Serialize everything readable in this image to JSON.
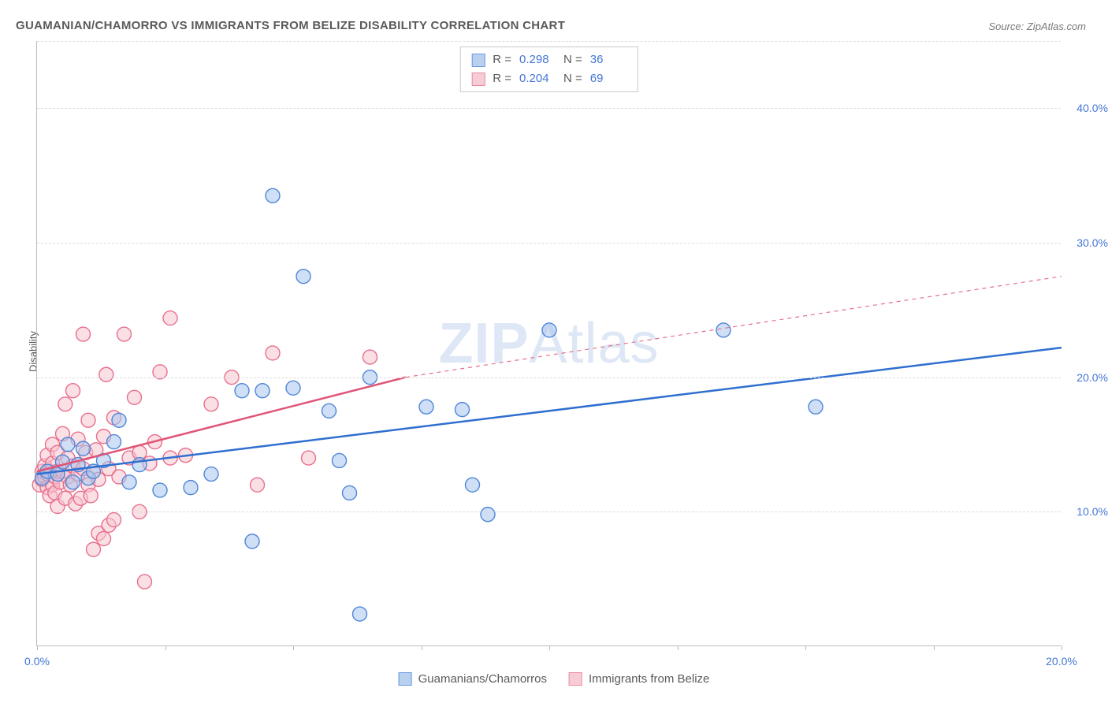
{
  "title": "GUAMANIAN/CHAMORRO VS IMMIGRANTS FROM BELIZE DISABILITY CORRELATION CHART",
  "source": "Source: ZipAtlas.com",
  "y_axis_title": "Disability",
  "watermark": {
    "bold": "ZIP",
    "rest": "Atlas"
  },
  "chart": {
    "type": "scatter",
    "xlim": [
      0,
      20
    ],
    "ylim": [
      0,
      45
    ],
    "x_ticks": [
      0,
      2.5,
      5,
      7.5,
      10,
      12.5,
      15,
      17.5,
      20
    ],
    "x_tick_labels": {
      "0": "0.0%",
      "20": "20.0%"
    },
    "y_ticks": [
      10,
      20,
      30,
      40
    ],
    "y_tick_labels": {
      "10": "10.0%",
      "20": "20.0%",
      "30": "30.0%",
      "40": "40.0%"
    },
    "y_top_grid": 45,
    "grid_color": "#dcdcdc",
    "background_color": "#ffffff",
    "marker_radius": 9,
    "marker_opacity": 0.55,
    "axis_label_color": "#4576d6",
    "axis_label_fontsize": 14,
    "title_color": "#5a5a5a",
    "title_fontsize": 15
  },
  "series": {
    "blue": {
      "name": "Guamanians/Chamorros",
      "fill": "#a8c5ec",
      "stroke": "#4f86d9",
      "swatch_fill": "#b9d0ef",
      "swatch_border": "#6a9ae0",
      "line_color": "#2f6fd0",
      "line_width": 2.5,
      "R": "0.298",
      "N": "36",
      "trend": {
        "x1": 0,
        "y1": 12.8,
        "x2": 20,
        "y2": 22.2,
        "dashed": false,
        "extend": false
      },
      "points": [
        [
          0.1,
          12.5
        ],
        [
          0.2,
          13.0
        ],
        [
          0.4,
          12.8
        ],
        [
          0.5,
          13.7
        ],
        [
          0.6,
          15.0
        ],
        [
          0.7,
          12.2
        ],
        [
          0.8,
          13.5
        ],
        [
          0.9,
          14.7
        ],
        [
          1.0,
          12.5
        ],
        [
          1.1,
          13.0
        ],
        [
          1.3,
          13.8
        ],
        [
          1.5,
          15.2
        ],
        [
          1.6,
          16.8
        ],
        [
          1.8,
          12.2
        ],
        [
          2.0,
          13.5
        ],
        [
          2.4,
          11.6
        ],
        [
          3.0,
          11.8
        ],
        [
          3.4,
          12.8
        ],
        [
          4.0,
          19.0
        ],
        [
          4.2,
          7.8
        ],
        [
          4.4,
          19.0
        ],
        [
          4.6,
          33.5
        ],
        [
          5.0,
          19.2
        ],
        [
          5.2,
          27.5
        ],
        [
          5.7,
          17.5
        ],
        [
          5.9,
          13.8
        ],
        [
          6.1,
          11.4
        ],
        [
          6.3,
          2.4
        ],
        [
          6.5,
          20.0
        ],
        [
          7.6,
          17.8
        ],
        [
          8.3,
          17.6
        ],
        [
          8.5,
          12.0
        ],
        [
          8.8,
          9.8
        ],
        [
          10.0,
          23.5
        ],
        [
          13.4,
          23.5
        ],
        [
          15.2,
          17.8
        ]
      ]
    },
    "pink": {
      "name": "Immigrants from Belize",
      "fill": "#f6c4cf",
      "stroke": "#e86f8b",
      "swatch_fill": "#f7ccd6",
      "swatch_border": "#ea8aa0",
      "line_color": "#e05577",
      "line_width": 2.5,
      "R": "0.204",
      "N": "69",
      "trend": {
        "x1": 0,
        "y1": 13.0,
        "x2": 7.2,
        "y2": 20.0,
        "dashed_to_x": 20,
        "dashed_to_y": 27.5
      },
      "points": [
        [
          0.05,
          12.0
        ],
        [
          0.1,
          12.4
        ],
        [
          0.1,
          13.0
        ],
        [
          0.15,
          12.6
        ],
        [
          0.15,
          13.4
        ],
        [
          0.2,
          11.8
        ],
        [
          0.2,
          12.8
        ],
        [
          0.2,
          14.2
        ],
        [
          0.25,
          11.2
        ],
        [
          0.25,
          13.0
        ],
        [
          0.3,
          12.0
        ],
        [
          0.3,
          13.6
        ],
        [
          0.3,
          15.0
        ],
        [
          0.35,
          11.4
        ],
        [
          0.35,
          12.6
        ],
        [
          0.4,
          10.4
        ],
        [
          0.4,
          13.0
        ],
        [
          0.4,
          14.4
        ],
        [
          0.45,
          12.2
        ],
        [
          0.5,
          13.0
        ],
        [
          0.5,
          15.8
        ],
        [
          0.55,
          18.0
        ],
        [
          0.55,
          11.0
        ],
        [
          0.6,
          12.6
        ],
        [
          0.6,
          14.0
        ],
        [
          0.65,
          12.0
        ],
        [
          0.7,
          13.4
        ],
        [
          0.7,
          19.0
        ],
        [
          0.75,
          10.6
        ],
        [
          0.8,
          12.8
        ],
        [
          0.8,
          15.4
        ],
        [
          0.85,
          11.0
        ],
        [
          0.9,
          13.2
        ],
        [
          0.9,
          23.2
        ],
        [
          0.95,
          14.4
        ],
        [
          1.0,
          12.0
        ],
        [
          1.0,
          16.8
        ],
        [
          1.05,
          11.2
        ],
        [
          1.1,
          7.2
        ],
        [
          1.1,
          13.0
        ],
        [
          1.15,
          14.6
        ],
        [
          1.2,
          8.4
        ],
        [
          1.2,
          12.4
        ],
        [
          1.3,
          8.0
        ],
        [
          1.3,
          15.6
        ],
        [
          1.35,
          20.2
        ],
        [
          1.4,
          9.0
        ],
        [
          1.4,
          13.2
        ],
        [
          1.5,
          9.4
        ],
        [
          1.5,
          17.0
        ],
        [
          1.6,
          12.6
        ],
        [
          1.7,
          23.2
        ],
        [
          1.8,
          14.0
        ],
        [
          1.9,
          18.5
        ],
        [
          2.0,
          10.0
        ],
        [
          2.0,
          14.4
        ],
        [
          2.1,
          4.8
        ],
        [
          2.2,
          13.6
        ],
        [
          2.3,
          15.2
        ],
        [
          2.4,
          20.4
        ],
        [
          2.6,
          14.0
        ],
        [
          2.6,
          24.4
        ],
        [
          2.9,
          14.2
        ],
        [
          3.4,
          18.0
        ],
        [
          3.8,
          20.0
        ],
        [
          4.3,
          12.0
        ],
        [
          4.6,
          21.8
        ],
        [
          5.3,
          14.0
        ],
        [
          6.5,
          21.5
        ]
      ]
    }
  },
  "stats_box": {
    "rows": [
      "blue",
      "pink"
    ]
  },
  "bottom_legend": [
    "blue",
    "pink"
  ]
}
